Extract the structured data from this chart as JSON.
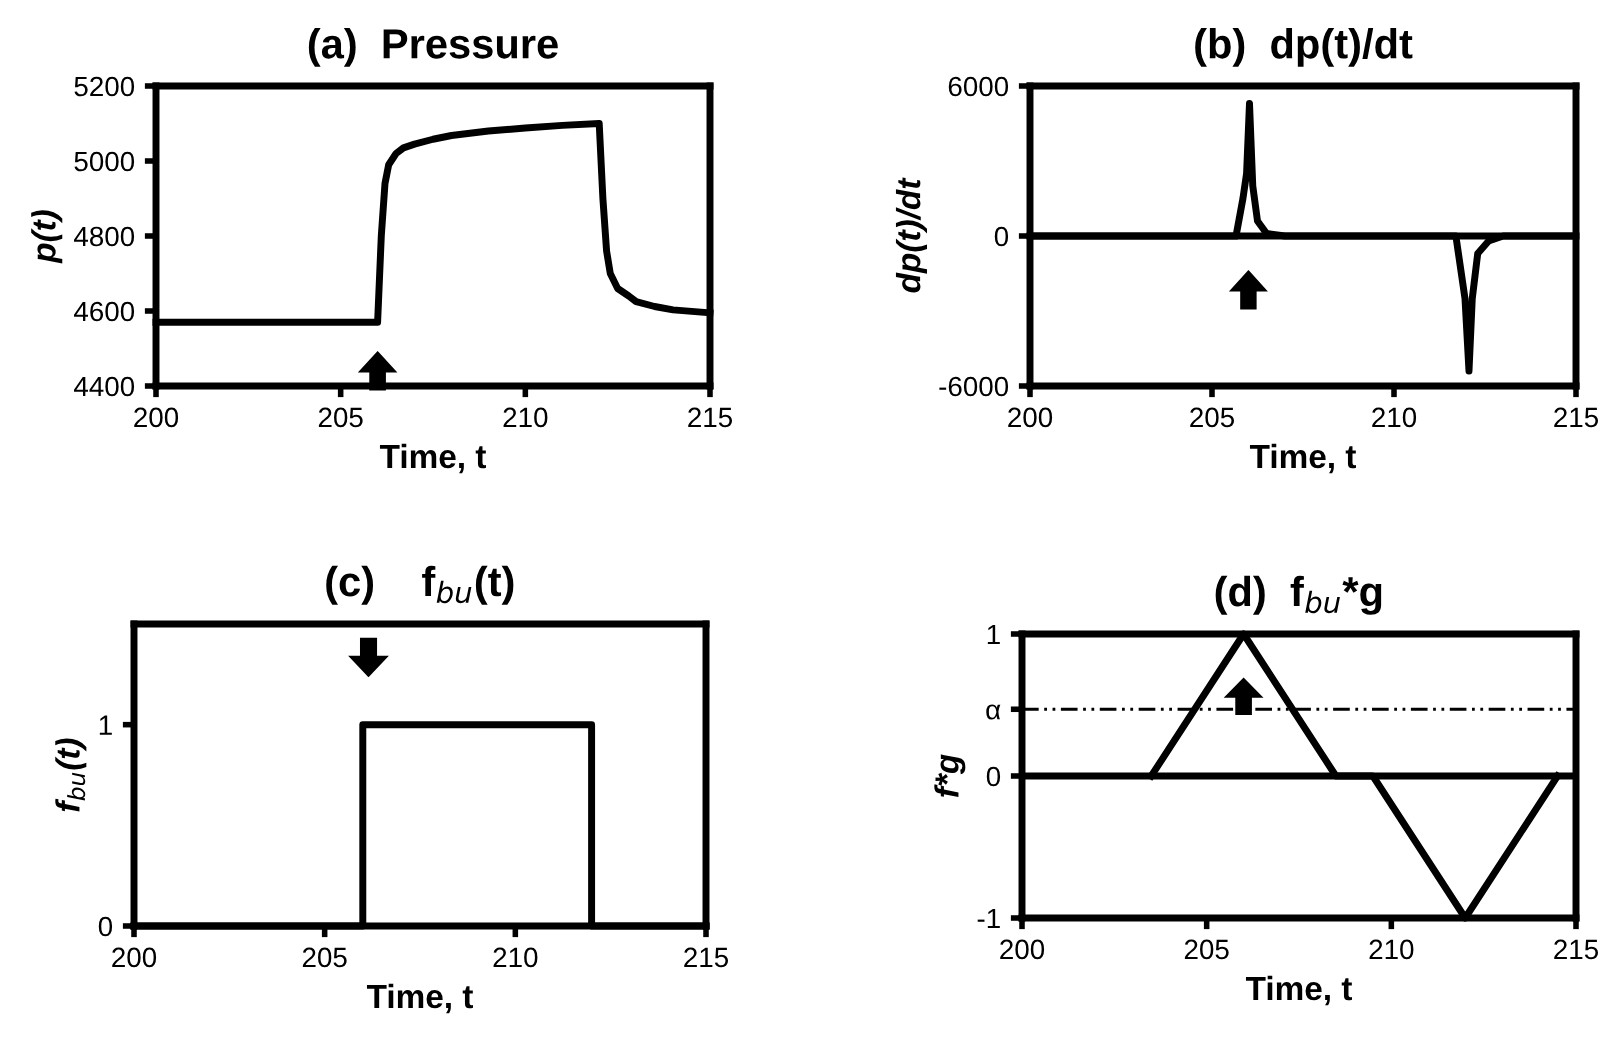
{
  "chart_data": [
    {
      "type": "line",
      "title": "(a)  Pressure",
      "xlabel": "Time, t",
      "ylabel": "p(t)",
      "xlim": [
        200,
        215
      ],
      "xticks": [
        200,
        205,
        210,
        215
      ],
      "ylim": [
        4400,
        5200
      ],
      "yticks": [
        4400,
        4600,
        4800,
        5000,
        5200
      ],
      "grid": false,
      "marker": "none",
      "line_style": "solid",
      "series": [
        {
          "color": "#000000",
          "x": [
            200,
            205,
            206,
            206.1,
            206.2,
            206.3,
            206.5,
            206.7,
            207,
            207.5,
            208,
            209,
            210,
            211,
            212,
            212.1,
            212.2,
            212.3,
            212.5,
            212.8,
            213,
            213.5,
            214,
            215
          ],
          "values": [
            4570,
            4570,
            4570,
            4800,
            4940,
            4990,
            5020,
            5035,
            5045,
            5058,
            5068,
            5080,
            5088,
            5095,
            5100,
            4900,
            4760,
            4700,
            4660,
            4640,
            4625,
            4612,
            4603,
            4595
          ]
        }
      ]
    },
    {
      "type": "line",
      "title": "(b)  dp(t)/dt",
      "xlabel": "Time, t",
      "ylabel": "dp(t)/dt",
      "xlim": [
        200,
        215
      ],
      "xticks": [
        200,
        205,
        210,
        215
      ],
      "ylim": [
        -6000,
        6000
      ],
      "yticks": [
        -6000,
        0,
        6000
      ],
      "grid": false,
      "marker": "none",
      "line_style": "solid",
      "ref_lines": [
        {
          "axis": "y",
          "value": 0,
          "label": null,
          "color": "#000000",
          "line_style": "solid"
        }
      ],
      "series": [
        {
          "color": "#000000",
          "x": [
            200,
            205.66,
            205.85,
            205.95,
            206.03,
            206.12,
            206.25,
            206.5,
            207,
            211.7,
            211.85,
            211.95,
            212.06,
            212.15,
            212.3,
            212.6,
            213,
            215
          ],
          "values": [
            0,
            0,
            1500,
            2500,
            5300,
            2000,
            600,
            100,
            0,
            0,
            -1500,
            -2500,
            -5400,
            -2500,
            -700,
            -200,
            0,
            0
          ]
        }
      ]
    },
    {
      "type": "line",
      "title": "(c)    f$_{bu}$(t)",
      "xlabel": "Time, t",
      "ylabel": "f$_{bu}$(t)",
      "xlim": [
        200,
        215
      ],
      "xticks": [
        200,
        205,
        210,
        215
      ],
      "ylim": [
        0,
        1.5
      ],
      "yticks": [
        0,
        1
      ],
      "grid": false,
      "marker": "none",
      "line_style": "solid",
      "series": [
        {
          "color": "#000000",
          "x": [
            200,
            206,
            206,
            212,
            212,
            215
          ],
          "values": [
            0,
            0,
            1,
            1,
            0,
            0
          ]
        }
      ]
    },
    {
      "type": "line",
      "title": "(d)  f$_{bu}$*g",
      "xlabel": "Time, t",
      "ylabel": "f*g",
      "xlim": [
        200,
        215
      ],
      "xticks": [
        200,
        205,
        210,
        215
      ],
      "ylim": [
        -1,
        1
      ],
      "yticks": [
        -1,
        0,
        {
          "value": 0.47,
          "label": "α"
        },
        1
      ],
      "grid": false,
      "marker": "none",
      "line_style": "solid",
      "ref_lines": [
        {
          "axis": "y",
          "value": 0,
          "label": null,
          "color": "#000000",
          "line_style": "solid"
        },
        {
          "axis": "y",
          "value": 0.47,
          "label": null,
          "color": "#000000",
          "line_style": "dashdot"
        }
      ],
      "series": [
        {
          "color": "#000000",
          "x": [
            203.5,
            206,
            208.5,
            209.5,
            212,
            214.5
          ],
          "values": [
            0,
            1,
            0,
            0,
            -1,
            0
          ]
        }
      ]
    }
  ]
}
